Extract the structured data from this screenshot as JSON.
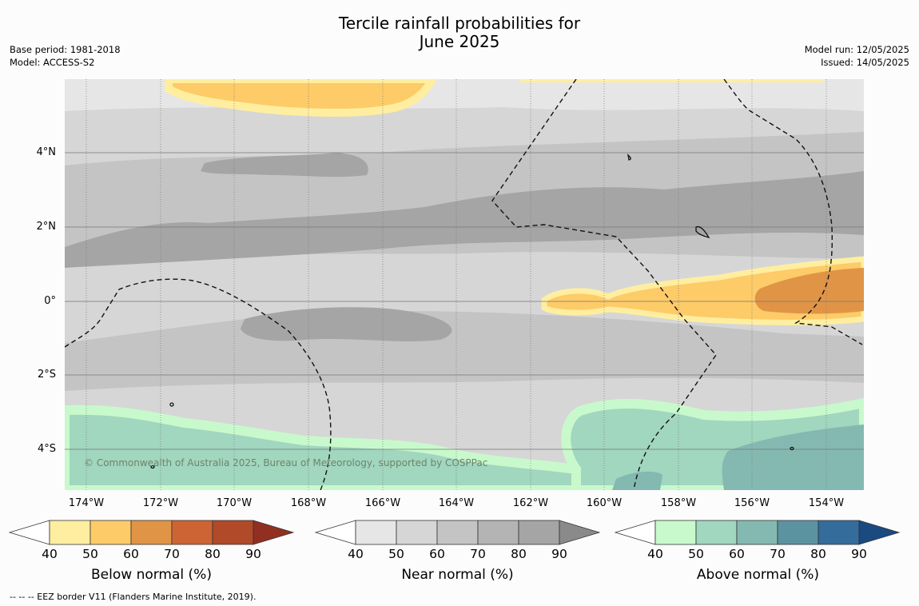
{
  "title_line1": "Tercile rainfall probabilities for",
  "title_line2": "June 2025",
  "meta_left": {
    "base_period": "Base period: 1981-2018",
    "model": "Model: ACCESS-S2"
  },
  "meta_right": {
    "model_run": "Model run: 12/05/2025",
    "issued": "Issued: 14/05/2025"
  },
  "lat_labels": [
    "4°N",
    "2°N",
    "0°",
    "2°S",
    "4°S"
  ],
  "lon_labels": [
    "174°W",
    "172°W",
    "170°W",
    "168°W",
    "166°W",
    "164°W",
    "162°W",
    "160°W",
    "158°W",
    "156°W",
    "154°W"
  ],
  "copyright": "© Commonwealth of Australia 2025, Bureau of Meteorology, supported by COSPPac",
  "colorbars": [
    {
      "title": "Below normal (%)",
      "ticks": [
        "40",
        "50",
        "60",
        "70",
        "80",
        "90"
      ],
      "colors": [
        "#ffffff",
        "#ffeea0",
        "#fdcb68",
        "#e09446",
        "#cd6434",
        "#b04a28",
        "#913020"
      ]
    },
    {
      "title": "Near normal (%)",
      "ticks": [
        "40",
        "50",
        "60",
        "70",
        "80",
        "90"
      ],
      "colors": [
        "#ffffff",
        "#e6e6e6",
        "#d6d6d6",
        "#c4c4c4",
        "#b4b4b4",
        "#a5a5a5",
        "#8a8a8a"
      ]
    },
    {
      "title": "Above normal (%)",
      "ticks": [
        "40",
        "50",
        "60",
        "70",
        "80",
        "90"
      ],
      "colors": [
        "#ffffff",
        "#c8f9cc",
        "#a1d6bf",
        "#84b9b1",
        "#5b93a1",
        "#346c9c",
        "#1a4a80"
      ]
    }
  ],
  "footnote": "--  --  -- EEZ border V11 (Flanders Marine Institute, 2019)."
}
